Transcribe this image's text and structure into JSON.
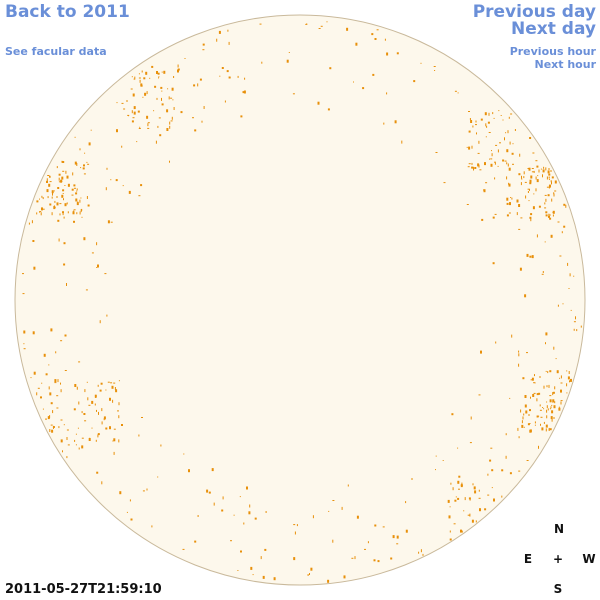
{
  "header": {
    "back": "Back to 2011",
    "facular": "See facular data",
    "prev_day": "Previous day",
    "next_day": "Next day",
    "prev_hour": "Previous hour",
    "next_hour": "Next hour"
  },
  "timestamp": "2011-05-27T21:59:10",
  "compass": {
    "n": "N",
    "e": "E",
    "center": "+",
    "w": "W",
    "s": "S"
  }
}
